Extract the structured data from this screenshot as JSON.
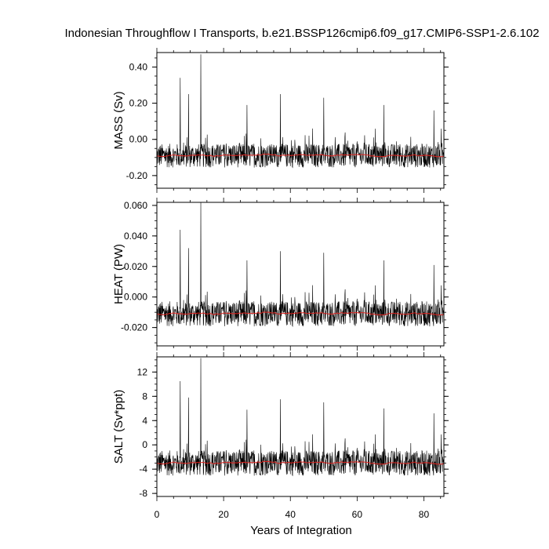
{
  "chart_data": {
    "type": "line",
    "title": "Indonesian Throughflow I Transports, b.e21.BSSP126cmip6.f09_g17.CMIP6-SSP1-2.6.102",
    "xlabel": "Years of Integration",
    "xlim": [
      0,
      86
    ],
    "xticks": [
      0,
      20,
      40,
      60,
      80
    ],
    "xtick_labels": [
      "0",
      "20",
      "40",
      "60",
      "80"
    ],
    "grid": false,
    "legend": "none",
    "colors": {
      "monthly": "#000000",
      "annual": "#e0201c"
    },
    "panels": [
      {
        "ylabel": "MASS (Sv)",
        "ylim": [
          -0.27,
          0.48
        ],
        "yticks": [
          -0.2,
          0.0,
          0.2,
          0.4
        ],
        "ytick_labels": [
          "-0.20",
          "0.00",
          "0.20",
          "0.40"
        ],
        "mean": -0.09,
        "spread": 0.06,
        "spikes": [
          [
            7,
            0.34
          ],
          [
            13.2,
            0.47
          ],
          [
            37,
            0.25
          ],
          [
            50,
            0.23
          ],
          [
            68,
            0.19
          ],
          [
            9.5,
            0.25
          ],
          [
            27,
            0.19
          ],
          [
            83,
            0.16
          ]
        ]
      },
      {
        "ylabel": "HEAT (PW)",
        "ylim": [
          -0.032,
          0.062
        ],
        "yticks": [
          -0.02,
          0.0,
          0.02,
          0.04,
          0.06
        ],
        "ytick_labels": [
          "-0.020",
          "0.000",
          "0.020",
          "0.040",
          "0.060"
        ],
        "mean": -0.011,
        "spread": 0.0075,
        "spikes": [
          [
            7,
            0.044
          ],
          [
            13.2,
            0.062
          ],
          [
            37,
            0.03
          ],
          [
            50,
            0.029
          ],
          [
            68,
            0.024
          ],
          [
            9.5,
            0.032
          ],
          [
            27,
            0.024
          ],
          [
            83,
            0.021
          ]
        ]
      },
      {
        "ylabel": "SALT (Sv*ppt)",
        "ylim": [
          -8.5,
          14.5
        ],
        "yticks": [
          -8,
          -4,
          0,
          4,
          8,
          12
        ],
        "ytick_labels": [
          "-8",
          "-4",
          "0",
          "4",
          "8",
          "12"
        ],
        "mean": -3.0,
        "spread": 1.9,
        "spikes": [
          [
            7,
            10.5
          ],
          [
            13.2,
            14.3
          ],
          [
            37,
            7.5
          ],
          [
            50,
            7.0
          ],
          [
            68,
            6.0
          ],
          [
            9.5,
            7.8
          ],
          [
            27,
            5.8
          ],
          [
            83,
            5.2
          ]
        ]
      }
    ]
  }
}
